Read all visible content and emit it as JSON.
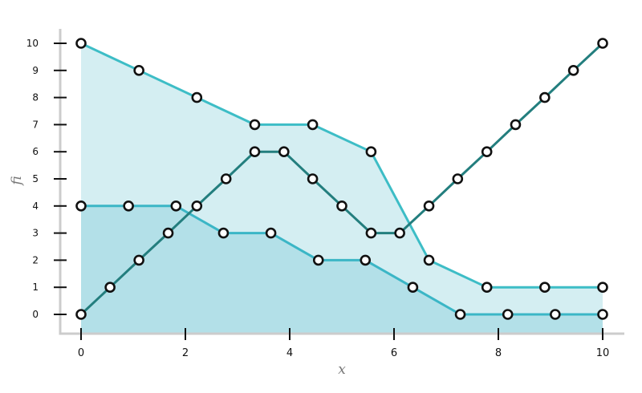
{
  "chart_data": {
    "type": "line",
    "xlabel": "x",
    "ylabel": "fi",
    "xlim": [
      0,
      10
    ],
    "ylim": [
      0,
      10
    ],
    "x_ticks": [
      "0",
      "2",
      "4",
      "6",
      "8",
      "10"
    ],
    "y_ticks": [
      "0",
      "1",
      "2",
      "3",
      "4",
      "5",
      "6",
      "7",
      "8",
      "9",
      "10"
    ],
    "grid": false,
    "legend": "none",
    "series": [
      {
        "color": "#3dbdc6",
        "area_fill": "#d4eef2",
        "x": [
          0,
          1.11,
          2.22,
          3.33,
          4.44,
          5.56,
          6.67,
          7.78,
          8.89,
          10
        ],
        "y": [
          10,
          9,
          8,
          7,
          7,
          6,
          2,
          1,
          1,
          1
        ]
      },
      {
        "color": "#3bb6c6",
        "area_fill": "#b3e0e8",
        "x": [
          0,
          0.91,
          1.82,
          2.73,
          3.64,
          4.55,
          5.45,
          6.36,
          7.27,
          8.18,
          9.09,
          10
        ],
        "y": [
          4,
          4,
          4,
          3,
          3,
          2,
          2,
          1,
          0,
          0,
          0,
          0
        ]
      },
      {
        "color": "#237e7e",
        "x": [
          0,
          0.556,
          1.11,
          1.67,
          2.22,
          2.78,
          3.33,
          3.89,
          4.44,
          5,
          5.56,
          6.11,
          6.67,
          7.22,
          7.78,
          8.33,
          8.89,
          9.44,
          10
        ],
        "y": [
          0,
          1,
          2,
          3,
          4,
          5,
          6,
          6,
          5,
          4,
          3,
          3,
          4,
          5,
          6,
          7,
          8,
          9,
          10
        ]
      }
    ]
  }
}
